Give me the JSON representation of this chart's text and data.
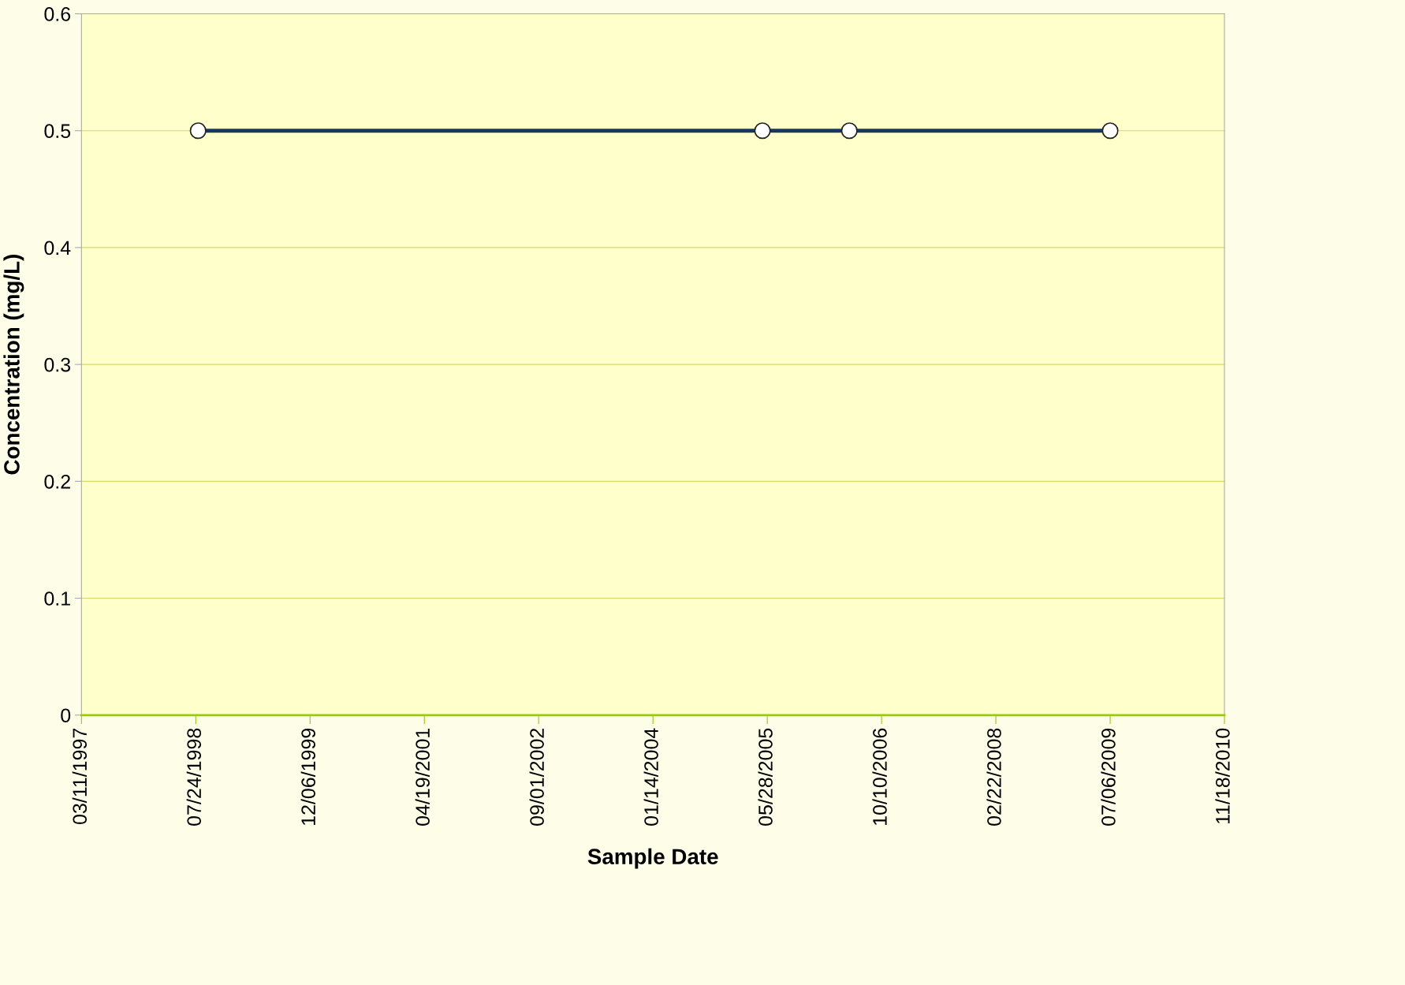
{
  "chart_data": {
    "type": "line",
    "xlabel": "Sample Date",
    "ylabel": "Concentration (mg/L)",
    "x": [
      "1998-08-03",
      "2005-05-07",
      "2006-05-22",
      "2009-07-06"
    ],
    "series": [
      {
        "color": "#17375e",
        "values": [
          0.5,
          0.5,
          0.5,
          0.5
        ]
      }
    ],
    "marker": "circle",
    "line_style": "solid",
    "grid": "y",
    "legend": false,
    "xlim": [
      "1997-03-11",
      "2010-11-18"
    ],
    "xticks": [
      {
        "value": "1997-03-11",
        "label": "03/11/1997"
      },
      {
        "value": "1998-07-24",
        "label": "07/24/1998"
      },
      {
        "value": "1999-12-06",
        "label": "12/06/1999"
      },
      {
        "value": "2001-04-19",
        "label": "04/19/2001"
      },
      {
        "value": "2002-09-01",
        "label": "09/01/2002"
      },
      {
        "value": "2004-01-14",
        "label": "01/14/2004"
      },
      {
        "value": "2005-05-28",
        "label": "05/28/2005"
      },
      {
        "value": "2006-10-10",
        "label": "10/10/2006"
      },
      {
        "value": "2008-02-22",
        "label": "02/22/2008"
      },
      {
        "value": "2009-07-06",
        "label": "07/06/2009"
      },
      {
        "value": "2010-11-18",
        "label": "11/18/2010"
      }
    ],
    "ylim": [
      0,
      0.6
    ],
    "yticks": [
      0,
      0.1,
      0.2,
      0.3,
      0.4,
      0.5,
      0.6
    ]
  }
}
